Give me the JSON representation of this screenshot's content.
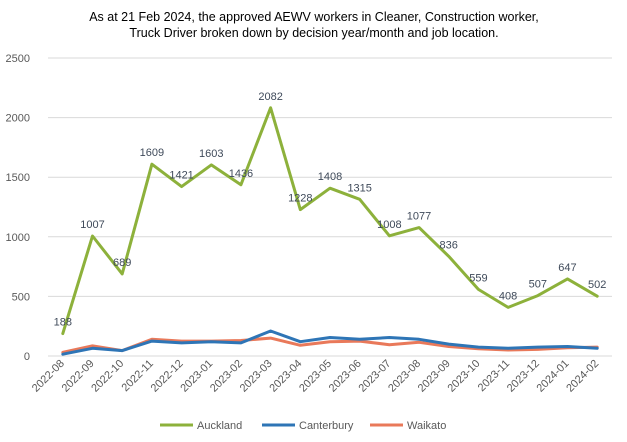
{
  "chart_data": {
    "type": "line",
    "title_lines": [
      "As at 21 Feb 2024, the approved AEWV workers in Cleaner, Construction worker,",
      "Truck Driver broken down by decision year/month and job location."
    ],
    "categories": [
      "2022-08",
      "2022-09",
      "2022-10",
      "2022-11",
      "2022-12",
      "2023-01",
      "2023-02",
      "2023-03",
      "2023-04",
      "2023-05",
      "2023-06",
      "2023-07",
      "2023-08",
      "2023-09",
      "2023-10",
      "2023-11",
      "2023-12",
      "2024-01",
      "2024-02"
    ],
    "ylim": [
      0,
      2500
    ],
    "yticks": [
      0,
      500,
      1000,
      1500,
      2000,
      2500
    ],
    "grid": true,
    "legend_position": "bottom",
    "series": [
      {
        "name": "Auckland",
        "color": "#8db13b",
        "labeled": true,
        "values": [
          188,
          1007,
          689,
          1609,
          1421,
          1603,
          1436,
          2082,
          1228,
          1408,
          1315,
          1008,
          1077,
          836,
          559,
          408,
          507,
          647,
          502
        ]
      },
      {
        "name": "Canterbury",
        "color": "#2e75b6",
        "labeled": false,
        "values": [
          15,
          65,
          45,
          125,
          110,
          120,
          110,
          210,
          120,
          155,
          140,
          155,
          140,
          100,
          75,
          65,
          75,
          80,
          65
        ]
      },
      {
        "name": "Waikato",
        "color": "#e9795a",
        "labeled": false,
        "values": [
          30,
          85,
          45,
          140,
          125,
          125,
          130,
          150,
          90,
          120,
          125,
          95,
          115,
          80,
          60,
          50,
          55,
          70,
          75
        ]
      }
    ]
  }
}
